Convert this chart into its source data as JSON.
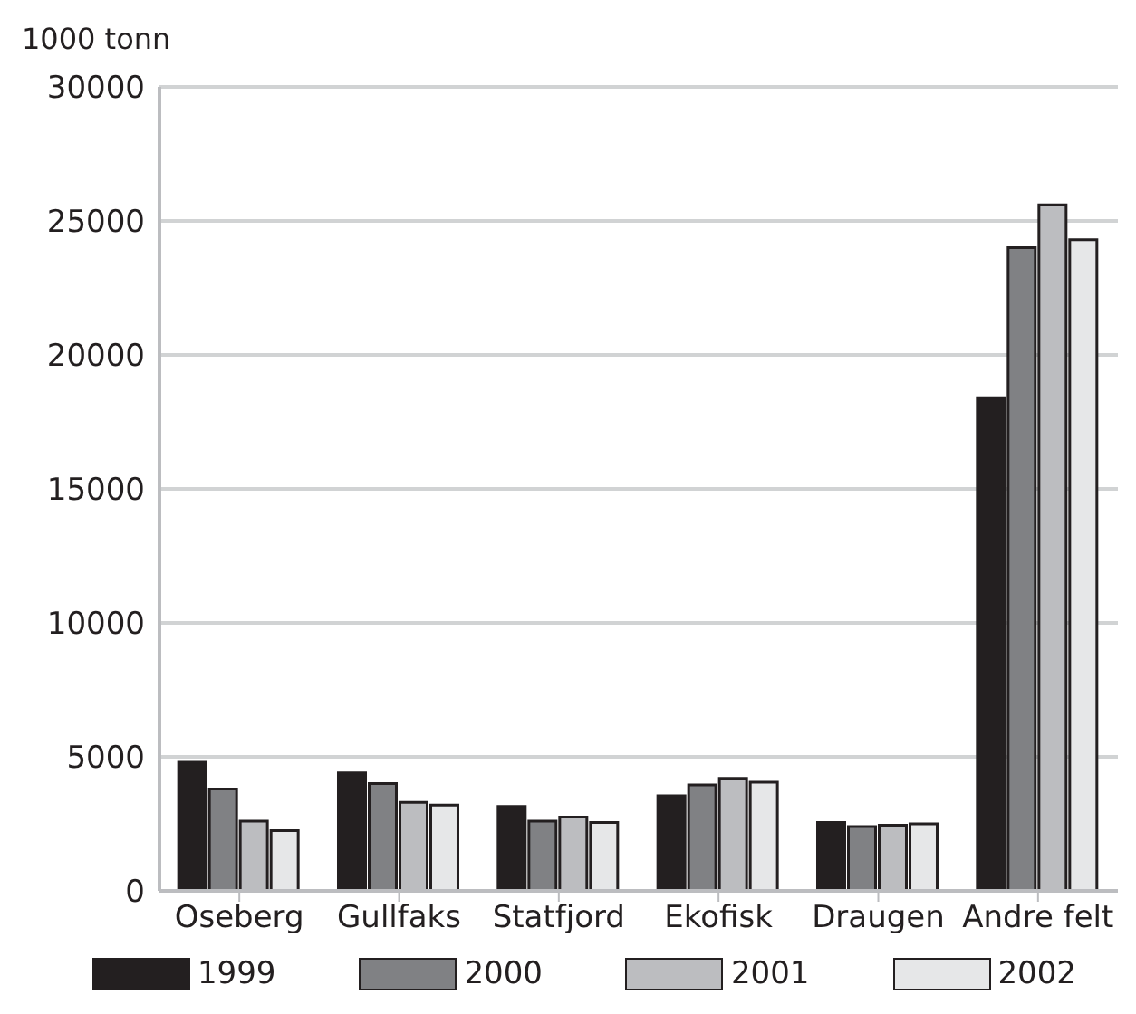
{
  "chart_data": {
    "type": "bar",
    "ylabel": "1000 tonn",
    "categories": [
      "Oseberg",
      "Gullfaks",
      "Statfjord",
      "Ekofisk",
      "Draugen",
      "Andre felt"
    ],
    "series": [
      {
        "name": "1999",
        "color": "#231f20",
        "values": [
          4800,
          4400,
          3150,
          3550,
          2550,
          18400
        ]
      },
      {
        "name": "2000",
        "color": "#808184",
        "values": [
          3800,
          4000,
          2600,
          3950,
          2400,
          24000
        ]
      },
      {
        "name": "2001",
        "color": "#bcbdc0",
        "values": [
          2600,
          3300,
          2750,
          4200,
          2450,
          25600
        ]
      },
      {
        "name": "2002",
        "color": "#e6e7e8",
        "values": [
          2250,
          3200,
          2550,
          4050,
          2500,
          24300
        ]
      }
    ],
    "ylim": [
      0,
      30000
    ],
    "yticks": [
      0,
      5000,
      10000,
      15000,
      20000,
      25000,
      30000
    ],
    "grid": "y",
    "legend": "bottom"
  }
}
